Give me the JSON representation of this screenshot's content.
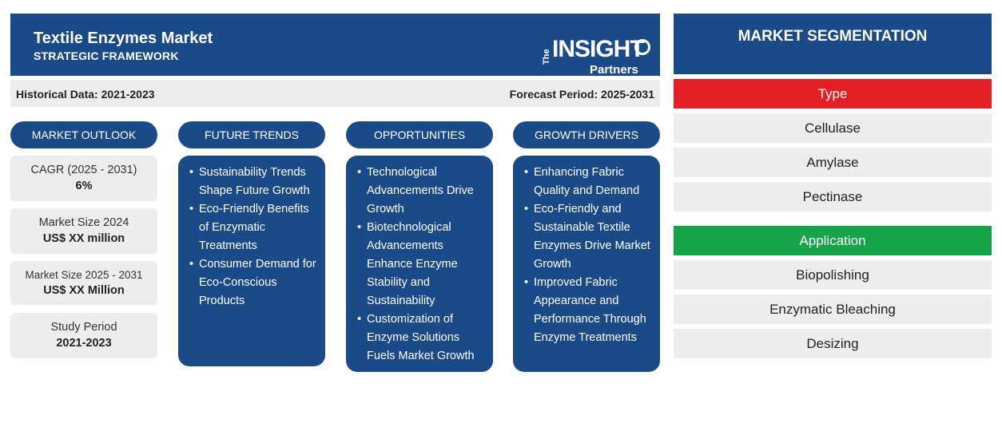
{
  "header": {
    "title": "Textile Enzymes Market",
    "subtitle": "STRATEGIC FRAMEWORK",
    "logo": {
      "the": "The",
      "insight": "INSIGHT",
      "partners": "Partners"
    }
  },
  "period": {
    "historical": "Historical Data: 2021-2023",
    "forecast": "Forecast Period: 2025-2031"
  },
  "columns": {
    "outlook": "MARKET OUTLOOK",
    "trends": "FUTURE TRENDS",
    "opportunities": "OPPORTUNITIES",
    "drivers": "GROWTH DRIVERS"
  },
  "outlook": [
    {
      "label": "CAGR (2025 - 2031)",
      "value": "6%"
    },
    {
      "label": "Market Size 2024",
      "value": "US$ XX million"
    },
    {
      "label": "Market Size 2025 - 2031",
      "value": "US$ XX Million"
    },
    {
      "label": "Study Period",
      "value": "2021-2023"
    }
  ],
  "trends": [
    "Sustainability Trends Shape Future Growth",
    "Eco-Friendly Benefits of Enzymatic Treatments",
    "Consumer Demand for Eco-Conscious Products"
  ],
  "opportunities": [
    "Technological Advancements Drive Growth",
    "Biotechnological Advancements Enhance Enzyme Stability and Sustainability",
    "Customization of Enzyme Solutions Fuels Market Growth"
  ],
  "drivers": [
    "Enhancing Fabric Quality and Demand",
    "Eco-Friendly and Sustainable Textile Enzymes Drive Market Growth",
    "Improved Fabric Appearance and Performance Through Enzyme Treatments"
  ],
  "segmentation": {
    "title": "MARKET SEGMENTATION",
    "type": {
      "label": "Type",
      "color": "#e31e24",
      "items": [
        "Cellulase",
        "Amylase",
        "Pectinase"
      ]
    },
    "application": {
      "label": "Application",
      "color": "#16a34a",
      "items": [
        "Biopolishing",
        "Enzymatic Bleaching",
        "Desizing"
      ]
    }
  },
  "colors": {
    "primary": "#1b4a88",
    "panel": "#ededed"
  }
}
